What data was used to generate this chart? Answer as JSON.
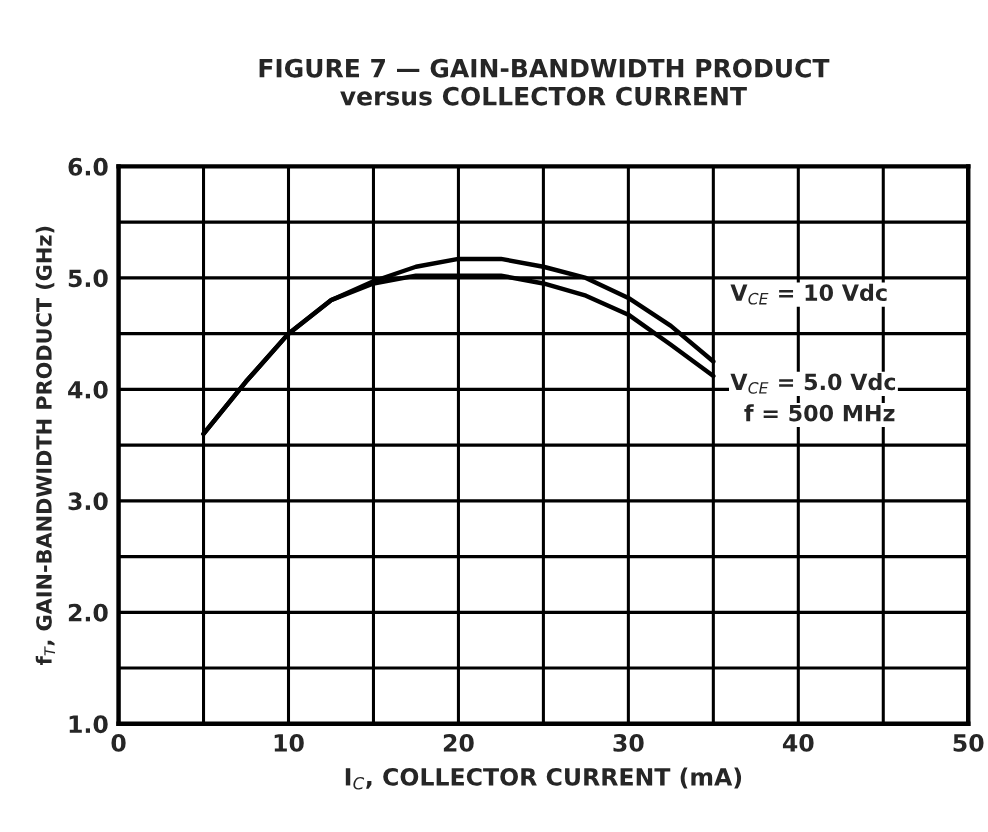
{
  "chart_data": {
    "type": "line",
    "title": "FIGURE 7 — GAIN-BANDWIDTH PRODUCT\nversus COLLECTOR CURRENT",
    "xlabel": "I$_{C}$, COLLECTOR CURRENT (mA)",
    "ylabel": "f$_{T}$, GAIN-BANDWIDTH PRODUCT (GHz)",
    "series": [
      {
        "name": "V$_{CE}$ = 10 Vdc",
        "color": "#000000",
        "x": [
          5,
          7.5,
          10,
          12.5,
          15,
          17.5,
          20,
          22.5,
          25,
          27.5,
          30,
          32.5,
          35
        ],
        "values": [
          3.6,
          4.07,
          4.5,
          4.8,
          4.97,
          5.1,
          5.17,
          5.17,
          5.1,
          5.0,
          4.82,
          4.57,
          4.25
        ]
      },
      {
        "name": "V$_{CE}$ = 5.0 Vdc",
        "color": "#000000",
        "x": [
          5,
          7.5,
          10,
          12.5,
          15,
          17.5,
          20,
          22.5,
          25,
          27.5,
          30,
          32.5,
          35
        ],
        "values": [
          3.6,
          4.07,
          4.5,
          4.8,
          4.95,
          5.02,
          5.02,
          5.02,
          4.95,
          4.84,
          4.67,
          4.4,
          4.12
        ]
      }
    ],
    "annotations": [
      "f = 500 MHz"
    ],
    "xlim": [
      0,
      50
    ],
    "ylim": [
      1,
      6
    ],
    "xticks": [
      0,
      {
        "value": 5,
        "label": null
      },
      10,
      {
        "value": 15,
        "label": null
      },
      20,
      {
        "value": 25,
        "label": null
      },
      30,
      {
        "value": 35,
        "label": null
      },
      40,
      {
        "value": 45,
        "label": null
      },
      50
    ],
    "yticks": [
      {
        "value": 1,
        "label": "1.0"
      },
      {
        "value": 1.5,
        "label": null
      },
      {
        "value": 2,
        "label": "2.0"
      },
      {
        "value": 2.5,
        "label": null
      },
      {
        "value": 3,
        "label": "3.0"
      },
      {
        "value": 3.5,
        "label": null
      },
      {
        "value": 4,
        "label": "4.0"
      },
      {
        "value": 4.5,
        "label": null
      },
      {
        "value": 5,
        "label": "5.0"
      },
      {
        "value": 5.5,
        "label": null
      },
      {
        "value": 6,
        "label": "6.0"
      }
    ],
    "grid": true,
    "line_style": "solid",
    "marker": "none"
  }
}
